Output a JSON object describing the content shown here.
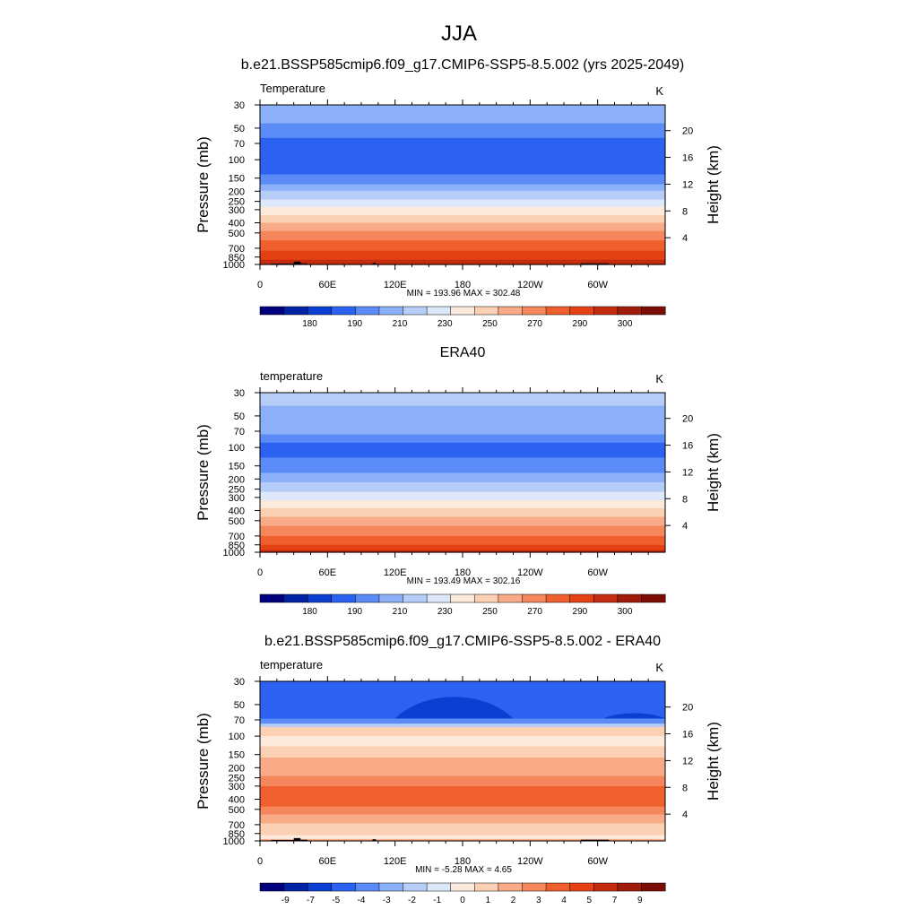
{
  "figure_title": "JJA",
  "chart_data": [
    {
      "type": "heatmap",
      "panel_title": "b.e21.BSSP585cmip6.f09_g17.CMIP6-SSP5-8.5.002 (yrs 2025-2049)",
      "variable": "Temperature",
      "units": "K",
      "ylabel": "Pressure (mb)",
      "ylabel_right": "Height (km)",
      "xlabel": "",
      "x_ticks": [
        "0",
        "60E",
        "120E",
        "180",
        "120W",
        "60W"
      ],
      "x_tick_values": [
        0,
        60,
        120,
        180,
        240,
        300
      ],
      "xlim": [
        0,
        360
      ],
      "y_ticks": [
        "30",
        "50",
        "70",
        "100",
        "150",
        "200",
        "250",
        "300",
        "400",
        "500",
        "700",
        "850",
        "1000"
      ],
      "y_tick_values": [
        30,
        50,
        70,
        100,
        150,
        200,
        250,
        300,
        400,
        500,
        700,
        850,
        1000
      ],
      "ylim": [
        30,
        1000
      ],
      "height_ticks": [
        "20",
        "16",
        "12",
        "8",
        "4"
      ],
      "height_tick_values": [
        20,
        16,
        12,
        8,
        4
      ],
      "min_max": "MIN = 193.96  MAX = 302.48",
      "colorbar_labels": [
        "180",
        "190",
        "210",
        "230",
        "250",
        "270",
        "290",
        "300"
      ],
      "colorbar_colors": [
        "#00007f",
        "#0023a5",
        "#0a3fd1",
        "#2b62f2",
        "#5a8bf7",
        "#8cb1f8",
        "#b6cdf8",
        "#dde8fb",
        "#fcebdc",
        "#fcd0b3",
        "#f9ab87",
        "#f6875d",
        "#f05f2e",
        "#e44215",
        "#c52b0e",
        "#a01b08",
        "#7c0d04"
      ],
      "layers": [
        {
          "p_top": 30,
          "p_bot": 45,
          "color": "#8cb1f8"
        },
        {
          "p_top": 45,
          "p_bot": 62,
          "color": "#5a8bf7"
        },
        {
          "p_top": 62,
          "p_bot": 138,
          "color": "#2b62f2"
        },
        {
          "p_top": 138,
          "p_bot": 172,
          "color": "#5a8bf7"
        },
        {
          "p_top": 172,
          "p_bot": 198,
          "color": "#8cb1f8"
        },
        {
          "p_top": 198,
          "p_bot": 240,
          "color": "#b6cdf8"
        },
        {
          "p_top": 240,
          "p_bot": 282,
          "color": "#dde8fb"
        },
        {
          "p_top": 282,
          "p_bot": 340,
          "color": "#fcebdc"
        },
        {
          "p_top": 340,
          "p_bot": 400,
          "color": "#fcd0b3"
        },
        {
          "p_top": 400,
          "p_bot": 480,
          "color": "#f9ab87"
        },
        {
          "p_top": 480,
          "p_bot": 590,
          "color": "#f6875d"
        },
        {
          "p_top": 590,
          "p_bot": 740,
          "color": "#f05f2e"
        },
        {
          "p_top": 740,
          "p_bot": 900,
          "color": "#e44215"
        },
        {
          "p_top": 900,
          "p_bot": 1000,
          "color": "#c52b0e"
        }
      ],
      "topography": [
        {
          "lon_start": 10,
          "lon_end": 30,
          "p_top": 980
        },
        {
          "lon_start": 30,
          "lon_end": 36,
          "p_top": 940
        },
        {
          "lon_start": 36,
          "lon_end": 42,
          "p_top": 975
        },
        {
          "lon_start": 100,
          "lon_end": 103,
          "p_top": 965
        },
        {
          "lon_start": 285,
          "lon_end": 310,
          "p_top": 975
        }
      ]
    },
    {
      "type": "heatmap",
      "panel_title": "ERA40",
      "variable": "temperature",
      "units": "K",
      "ylabel": "Pressure (mb)",
      "ylabel_right": "Height (km)",
      "xlabel": "",
      "x_ticks": [
        "0",
        "60E",
        "120E",
        "180",
        "120W",
        "60W"
      ],
      "x_tick_values": [
        0,
        60,
        120,
        180,
        240,
        300
      ],
      "xlim": [
        0,
        360
      ],
      "y_ticks": [
        "30",
        "50",
        "70",
        "100",
        "150",
        "200",
        "250",
        "300",
        "400",
        "500",
        "700",
        "850",
        "1000"
      ],
      "y_tick_values": [
        30,
        50,
        70,
        100,
        150,
        200,
        250,
        300,
        400,
        500,
        700,
        850,
        1000
      ],
      "ylim": [
        30,
        1000
      ],
      "height_ticks": [
        "20",
        "16",
        "12",
        "8",
        "4"
      ],
      "height_tick_values": [
        20,
        16,
        12,
        8,
        4
      ],
      "min_max": "MIN = 193.49  MAX = 302.16",
      "colorbar_labels": [
        "180",
        "190",
        "210",
        "230",
        "250",
        "270",
        "290",
        "300"
      ],
      "colorbar_colors": [
        "#00007f",
        "#0023a5",
        "#0a3fd1",
        "#2b62f2",
        "#5a8bf7",
        "#8cb1f8",
        "#b6cdf8",
        "#dde8fb",
        "#fcebdc",
        "#fcd0b3",
        "#f9ab87",
        "#f6875d",
        "#f05f2e",
        "#e44215",
        "#c52b0e",
        "#a01b08",
        "#7c0d04"
      ],
      "layers": [
        {
          "p_top": 30,
          "p_bot": 40,
          "color": "#b6cdf8"
        },
        {
          "p_top": 40,
          "p_bot": 75,
          "color": "#8cb1f8"
        },
        {
          "p_top": 75,
          "p_bot": 90,
          "color": "#5a8bf7"
        },
        {
          "p_top": 90,
          "p_bot": 125,
          "color": "#2b62f2"
        },
        {
          "p_top": 125,
          "p_bot": 175,
          "color": "#5a8bf7"
        },
        {
          "p_top": 175,
          "p_bot": 215,
          "color": "#8cb1f8"
        },
        {
          "p_top": 215,
          "p_bot": 265,
          "color": "#b6cdf8"
        },
        {
          "p_top": 265,
          "p_bot": 320,
          "color": "#dde8fb"
        },
        {
          "p_top": 320,
          "p_bot": 380,
          "color": "#fcebdc"
        },
        {
          "p_top": 380,
          "p_bot": 460,
          "color": "#fcd0b3"
        },
        {
          "p_top": 460,
          "p_bot": 560,
          "color": "#f9ab87"
        },
        {
          "p_top": 560,
          "p_bot": 700,
          "color": "#f6875d"
        },
        {
          "p_top": 700,
          "p_bot": 850,
          "color": "#f05f2e"
        },
        {
          "p_top": 850,
          "p_bot": 950,
          "color": "#e44215"
        },
        {
          "p_top": 950,
          "p_bot": 1000,
          "color": "#c52b0e"
        }
      ],
      "topography": []
    },
    {
      "type": "heatmap",
      "panel_title": "b.e21.BSSP585cmip6.f09_g17.CMIP6-SSP5-8.5.002 - ERA40",
      "variable": "temperature",
      "units": "K",
      "ylabel": "Pressure (mb)",
      "ylabel_right": "Height (km)",
      "xlabel": "",
      "x_ticks": [
        "0",
        "60E",
        "120E",
        "180",
        "120W",
        "60W"
      ],
      "x_tick_values": [
        0,
        60,
        120,
        180,
        240,
        300
      ],
      "xlim": [
        0,
        360
      ],
      "y_ticks": [
        "30",
        "50",
        "70",
        "100",
        "150",
        "200",
        "250",
        "300",
        "400",
        "500",
        "700",
        "850",
        "1000"
      ],
      "y_tick_values": [
        30,
        50,
        70,
        100,
        150,
        200,
        250,
        300,
        400,
        500,
        700,
        850,
        1000
      ],
      "ylim": [
        30,
        1000
      ],
      "height_ticks": [
        "20",
        "16",
        "12",
        "8",
        "4"
      ],
      "height_tick_values": [
        20,
        16,
        12,
        8,
        4
      ],
      "min_max": "MIN = -5.28  MAX =   4.65",
      "colorbar_labels": [
        "-9",
        "-7",
        "-5",
        "-4",
        "-3",
        "-2",
        "-1",
        "0",
        "1",
        "2",
        "3",
        "4",
        "5",
        "7",
        "9"
      ],
      "colorbar_colors": [
        "#00007f",
        "#0023a5",
        "#0a3fd1",
        "#2b62f2",
        "#5a8bf7",
        "#8cb1f8",
        "#b6cdf8",
        "#dde8fb",
        "#fcebdc",
        "#fcd0b3",
        "#f9ab87",
        "#f6875d",
        "#f05f2e",
        "#e44215",
        "#c52b0e",
        "#a01b08",
        "#7c0d04"
      ],
      "layers": [
        {
          "p_top": 30,
          "p_bot": 68,
          "color": "#2b62f2"
        },
        {
          "p_top": 68,
          "p_bot": 76,
          "color": "#5a8bf7"
        },
        {
          "p_top": 76,
          "p_bot": 82,
          "color": "#b6cdf8"
        },
        {
          "p_top": 82,
          "p_bot": 100,
          "color": "#fcd0b3"
        },
        {
          "p_top": 100,
          "p_bot": 125,
          "color": "#fcebdc"
        },
        {
          "p_top": 125,
          "p_bot": 160,
          "color": "#fcd0b3"
        },
        {
          "p_top": 160,
          "p_bot": 240,
          "color": "#f9ab87"
        },
        {
          "p_top": 240,
          "p_bot": 300,
          "color": "#f6875d"
        },
        {
          "p_top": 300,
          "p_bot": 470,
          "color": "#f05f2e"
        },
        {
          "p_top": 470,
          "p_bot": 560,
          "color": "#f6875d"
        },
        {
          "p_top": 560,
          "p_bot": 680,
          "color": "#f9ab87"
        },
        {
          "p_top": 680,
          "p_bot": 880,
          "color": "#fcd0b3"
        },
        {
          "p_top": 880,
          "p_bot": 960,
          "color": "#fcebdc"
        },
        {
          "p_top": 960,
          "p_bot": 1000,
          "color": "#f9ab87"
        }
      ],
      "features": [
        {
          "lon_start": 120,
          "lon_end": 225,
          "p_top": 36,
          "p_bot": 68,
          "color": "#0a3fd1"
        },
        {
          "lon_start": 305,
          "lon_end": 360,
          "p_top": 58,
          "p_bot": 68,
          "color": "#0a3fd1"
        }
      ],
      "topography": [
        {
          "lon_start": 10,
          "lon_end": 30,
          "p_top": 980
        },
        {
          "lon_start": 30,
          "lon_end": 36,
          "p_top": 940
        },
        {
          "lon_start": 36,
          "lon_end": 42,
          "p_top": 975
        },
        {
          "lon_start": 100,
          "lon_end": 103,
          "p_top": 965
        },
        {
          "lon_start": 285,
          "lon_end": 310,
          "p_top": 975
        }
      ]
    }
  ]
}
